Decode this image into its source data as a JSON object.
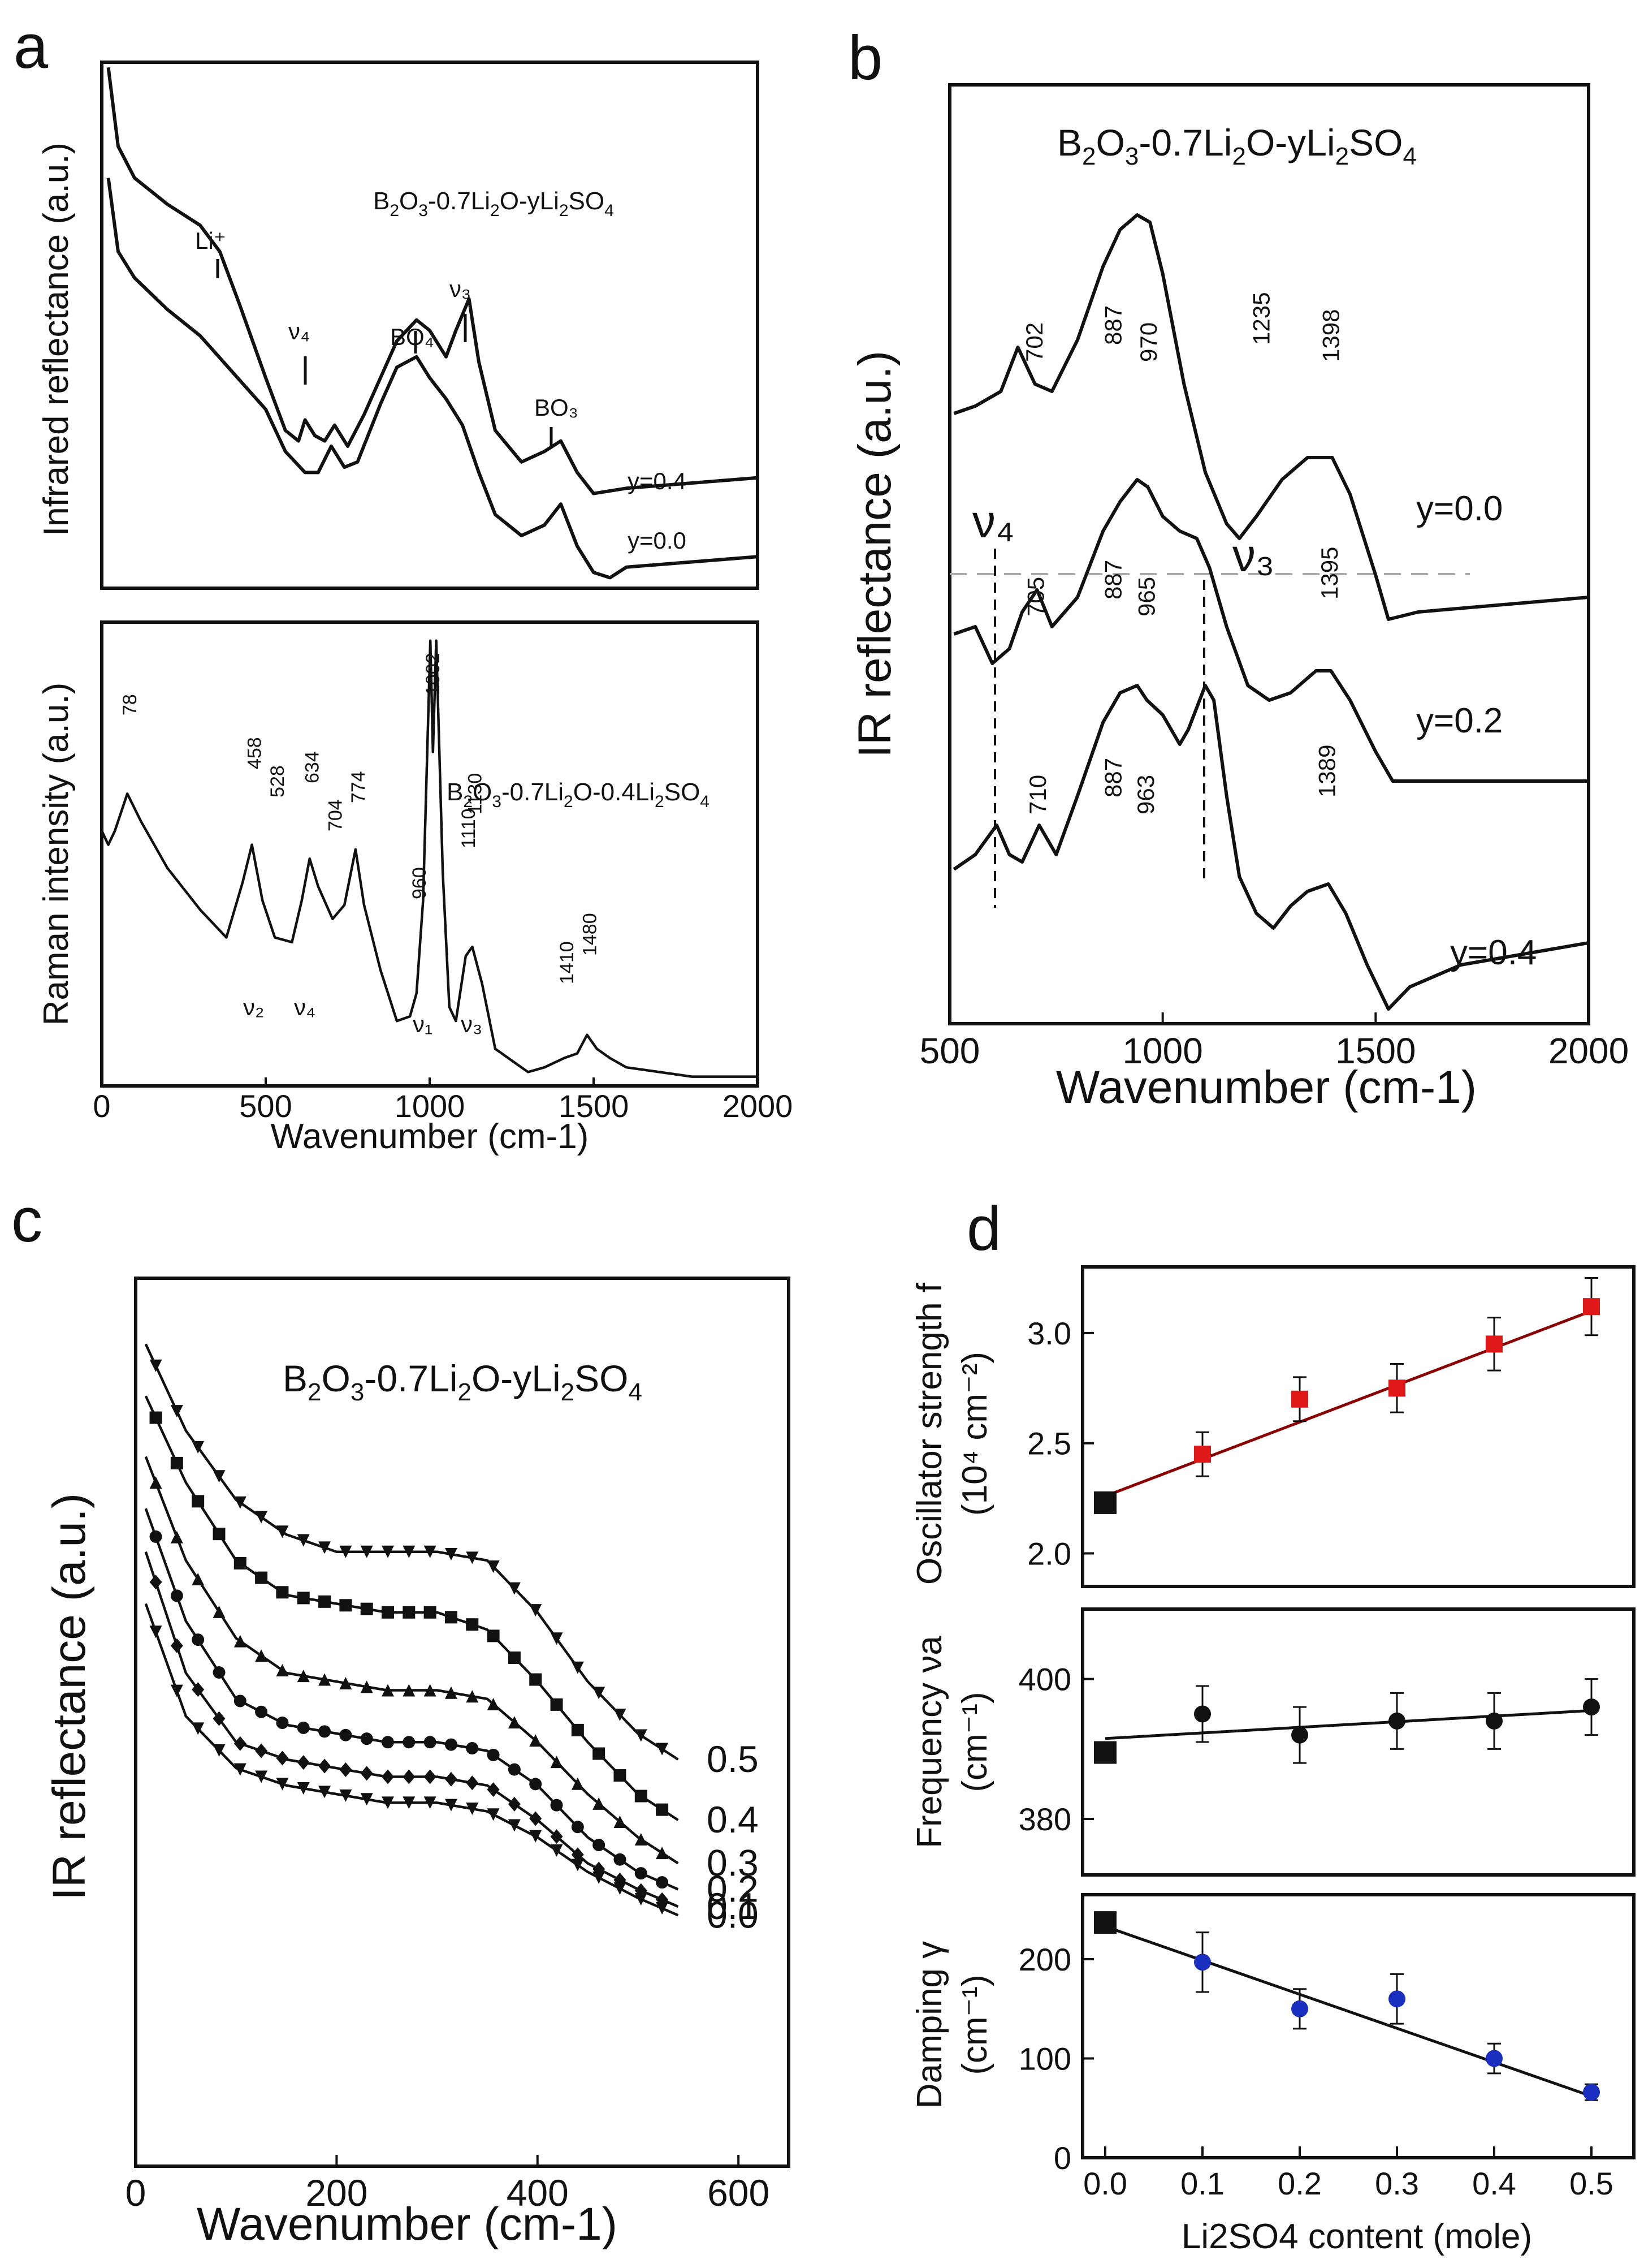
{
  "panels": {
    "a": {
      "label": "a",
      "top": {
        "ylabel": "Infrared reflectance (a.u.)",
        "formula": {
          "base": "B",
          "s1": "2",
          "o": "O",
          "s2": "3",
          "mid": "-0.7Li",
          "s3": "2",
          "mid2": "O-yLi",
          "s4": "2",
          "so": "SO",
          "s5": "4"
        },
        "annotations": {
          "li": "Li⁺",
          "v4": "ν₄",
          "bo4": "BO₄",
          "v3": "ν₃",
          "bo3": "BO₃"
        },
        "series": [
          {
            "name": "y=0.4"
          },
          {
            "name": "y=0.0"
          }
        ]
      },
      "bottom": {
        "ylabel": "Raman intensity (a.u.)",
        "formula": {
          "base": "B",
          "s1": "2",
          "o": "O",
          "s2": "3",
          "mid": "-0.7Li",
          "s3": "2",
          "mid2": "O-0.4Li",
          "s4": "2",
          "so": "SO",
          "s5": "4"
        },
        "peaks": [
          "78",
          "458",
          "528",
          "634",
          "704",
          "774",
          "1002",
          "960",
          "1110",
          "1130",
          "1410",
          "1480"
        ],
        "modes": [
          "ν₂",
          "ν₄",
          "ν₁",
          "ν₃"
        ],
        "xlabel": "Wavenumber (cm-1)",
        "xticks": [
          "0",
          "500",
          "1000",
          "1500",
          "2000"
        ]
      }
    },
    "b": {
      "label": "b",
      "ylabel": "IR reflectance (a.u.)",
      "xlabel": "Wavenumber (cm-1)",
      "xticks": [
        "500",
        "1000",
        "1500",
        "2000"
      ],
      "formula": {
        "base": "B",
        "s1": "2",
        "o": "O",
        "s2": "3",
        "mid": "-0.7Li",
        "s3": "2",
        "mid2": "O-yLi",
        "s4": "2",
        "so": "SO",
        "s5": "4"
      },
      "modes": {
        "v4": "ν₄",
        "v3": "ν₃"
      },
      "series": [
        {
          "name": "y=0.0",
          "peaks": [
            "702",
            "887",
            "970",
            "1235",
            "1398"
          ]
        },
        {
          "name": "y=0.2",
          "peaks": [
            "705",
            "887",
            "965",
            "1395"
          ]
        },
        {
          "name": "y=0.4",
          "peaks": [
            "710",
            "887",
            "963",
            "1389"
          ]
        }
      ]
    },
    "c": {
      "label": "c",
      "ylabel": "IR reflectance (a.u.)",
      "xlabel": "Wavenumber (cm-1)",
      "xticks": [
        "0",
        "200",
        "400",
        "600"
      ],
      "formula": {
        "base": "B",
        "s1": "2",
        "o": "O",
        "s2": "3",
        "mid": "-0.7Li",
        "s3": "2",
        "mid2": "O-yLi",
        "s4": "2",
        "so": "SO",
        "s5": "4"
      },
      "series": [
        "0.5",
        "0.4",
        "0.3",
        "0.2",
        "0.1",
        "0.0"
      ]
    },
    "d": {
      "label": "d",
      "xlabel": "Li2SO4 content (mole)",
      "xticks": [
        "0.0",
        "0.1",
        "0.2",
        "0.3",
        "0.4",
        "0.5"
      ],
      "subplots": [
        {
          "ylabel1": "Oscillator strength f",
          "ylabel2": "(10⁴ cm⁻²)",
          "yticks": [
            "2.0",
            "2.5",
            "3.0"
          ]
        },
        {
          "ylabel1": "Frequency νa",
          "ylabel2": "(cm⁻¹)",
          "yticks": [
            "380",
            "400"
          ]
        },
        {
          "ylabel1": "Damping γ",
          "ylabel2": "(cm⁻¹)",
          "yticks": [
            "0",
            "100",
            "200"
          ]
        }
      ]
    }
  },
  "chart_data": [
    {
      "id": "a-top",
      "type": "line",
      "title": "",
      "xlabel": "Wavenumber (cm-1)",
      "ylabel": "Infrared reflectance (a.u.)",
      "xlim": [
        0,
        2000
      ],
      "series": [
        {
          "name": "y=0.4",
          "x": [
            20,
            50,
            100,
            200,
            300,
            360,
            420,
            500,
            560,
            600,
            620,
            650,
            680,
            710,
            750,
            800,
            900,
            960,
            1000,
            1050,
            1080,
            1120,
            1150,
            1200,
            1280,
            1350,
            1400,
            1450,
            1500,
            1600,
            1800,
            2000
          ],
          "y": [
            99,
            84,
            78,
            73,
            69,
            64,
            54,
            40,
            30,
            28,
            32,
            29,
            28,
            31,
            27,
            33,
            47,
            51,
            49,
            44,
            49,
            55,
            43,
            30,
            24,
            26,
            28,
            22,
            18,
            19,
            20,
            21
          ]
        },
        {
          "name": "y=0.0",
          "x": [
            20,
            50,
            100,
            200,
            300,
            400,
            500,
            560,
            620,
            660,
            700,
            740,
            780,
            850,
            900,
            960,
            1000,
            1050,
            1100,
            1150,
            1200,
            1280,
            1350,
            1400,
            1450,
            1500,
            1550,
            1600,
            1800,
            2000
          ],
          "y": [
            78,
            64,
            59,
            53,
            48,
            41,
            34,
            26,
            22,
            22,
            27,
            23,
            24,
            35,
            42,
            44,
            40,
            36,
            31,
            22,
            14,
            10,
            12,
            16,
            8,
            3,
            2,
            4,
            5,
            6
          ]
        }
      ]
    },
    {
      "id": "a-bottom",
      "type": "line",
      "title": "",
      "xlabel": "Wavenumber (cm-1)",
      "ylabel": "Raman intensity (a.u.)",
      "xlim": [
        0,
        2000
      ],
      "series": [
        {
          "name": "y=0.4",
          "x": [
            0,
            20,
            40,
            78,
            120,
            200,
            300,
            380,
            430,
            458,
            490,
            528,
            580,
            610,
            634,
            660,
            704,
            740,
            774,
            800,
            850,
            900,
            940,
            960,
            980,
            1002,
            1010,
            1020,
            1040,
            1060,
            1080,
            1110,
            1130,
            1160,
            1200,
            1300,
            1350,
            1410,
            1450,
            1480,
            1510,
            1550,
            1600,
            1700,
            1800,
            1900,
            2000
          ],
          "y": [
            55,
            52,
            55,
            63,
            57,
            47,
            38,
            32,
            44,
            52,
            40,
            32,
            31,
            40,
            49,
            43,
            36,
            39,
            51,
            39,
            25,
            14,
            15,
            20,
            40,
            96,
            72,
            96,
            46,
            17,
            14,
            28,
            30,
            22,
            8,
            3,
            4,
            6,
            7,
            11,
            8,
            6,
            4,
            3,
            2,
            2,
            2
          ]
        }
      ]
    },
    {
      "id": "b",
      "type": "line",
      "title": "B2O3-0.7Li2O-yLi2SO4",
      "xlabel": "Wavenumber (cm-1)",
      "ylabel": "IR reflectance (a.u.)",
      "xlim": [
        500,
        2000
      ],
      "series": [
        {
          "name": "y=0.0",
          "x": [
            510,
            560,
            620,
            660,
            700,
            740,
            800,
            860,
            900,
            940,
            970,
            1000,
            1050,
            1100,
            1150,
            1180,
            1220,
            1280,
            1340,
            1398,
            1440,
            1500,
            1530,
            1600,
            1800,
            2000
          ],
          "y": [
            83,
            84,
            86,
            92,
            87,
            86,
            93,
            103,
            108,
            110,
            109,
            102,
            87,
            75,
            68,
            66,
            69,
            74,
            77,
            77,
            72,
            61,
            55,
            56,
            57,
            58
          ]
        },
        {
          "name": "y=0.2",
          "x": [
            510,
            560,
            600,
            640,
            670,
            705,
            740,
            800,
            860,
            900,
            940,
            965,
            1000,
            1040,
            1080,
            1110,
            1150,
            1200,
            1250,
            1300,
            1360,
            1395,
            1440,
            1500,
            1540,
            1600,
            1800,
            2000
          ],
          "y": [
            53,
            54,
            49,
            51,
            56,
            59,
            54,
            58,
            67,
            71,
            74,
            73,
            69,
            67,
            66,
            62,
            54,
            46,
            44,
            45,
            48,
            48,
            44,
            37,
            33,
            33,
            33,
            33
          ]
        },
        {
          "name": "y=0.4",
          "x": [
            510,
            560,
            610,
            640,
            670,
            710,
            750,
            800,
            860,
            900,
            940,
            963,
            1000,
            1040,
            1060,
            1100,
            1120,
            1150,
            1180,
            1220,
            1260,
            1300,
            1340,
            1389,
            1430,
            1480,
            1530,
            1580,
            1700,
            1800,
            2000
          ],
          "y": [
            21,
            23,
            27,
            23,
            22,
            27,
            23,
            31,
            41,
            45,
            46,
            44,
            42,
            38,
            40,
            46,
            44,
            31,
            20,
            15,
            13,
            16,
            18,
            19,
            15,
            8,
            2,
            5,
            8,
            9,
            11
          ]
        }
      ]
    },
    {
      "id": "c",
      "type": "line",
      "title": "B2O3-0.7Li2O-yLi2SO4",
      "xlabel": "Wavenumber (cm-1)",
      "ylabel": "IR reflectance (a.u.)",
      "xlim": [
        0,
        650
      ],
      "curve_x": [
        10,
        50,
        100,
        150,
        200,
        250,
        300,
        350,
        400,
        450,
        500,
        540
      ],
      "series": [
        {
          "name": "0.5",
          "marker": "triangle-down",
          "y": [
            95,
            85,
            77,
            73,
            71,
            71,
            71,
            70,
            64,
            56,
            50,
            47
          ]
        },
        {
          "name": "0.4",
          "marker": "square",
          "y": [
            89,
            79,
            70,
            66,
            65,
            64,
            64,
            62,
            56,
            49,
            43,
            40
          ]
        },
        {
          "name": "0.3",
          "marker": "triangle-up",
          "y": [
            82,
            70,
            61,
            57,
            56,
            55,
            55,
            54,
            49,
            43,
            38,
            35
          ]
        },
        {
          "name": "0.2",
          "marker": "circle",
          "y": [
            76,
            63,
            54,
            51,
            50,
            49,
            49,
            48,
            44,
            38,
            34,
            32
          ]
        },
        {
          "name": "0.1",
          "marker": "diamond",
          "y": [
            71,
            57,
            49,
            47,
            46,
            45,
            45,
            44,
            40,
            35,
            32,
            30
          ]
        },
        {
          "name": "0.0",
          "marker": "triangle-down",
          "y": [
            65,
            52,
            46,
            44,
            43,
            42,
            42,
            41,
            38,
            34,
            31,
            29
          ]
        }
      ]
    },
    {
      "id": "d-oscillator",
      "type": "scatter",
      "title": "",
      "xlabel": "Li2SO4 content (mole)",
      "ylabel": "Oscillator strength f (10⁴ cm⁻²)",
      "ylim": [
        1.85,
        3.3
      ],
      "x": [
        0.0,
        0.1,
        0.2,
        0.3,
        0.4,
        0.5
      ],
      "y": [
        2.23,
        2.45,
        2.7,
        2.75,
        2.95,
        3.12
      ],
      "yerr": [
        0,
        0.1,
        0.1,
        0.11,
        0.12,
        0.13
      ],
      "fit": [
        2.26,
        3.1
      ]
    },
    {
      "id": "d-frequency",
      "type": "scatter",
      "title": "",
      "xlabel": "Li2SO4 content (mole)",
      "ylabel": "Frequency νa (cm⁻¹)",
      "ylim": [
        372,
        410
      ],
      "x": [
        0.0,
        0.1,
        0.2,
        0.3,
        0.4,
        0.5
      ],
      "y": [
        389.5,
        395,
        392,
        394,
        394,
        396
      ],
      "yerr": [
        0,
        4,
        4,
        4,
        4,
        4
      ],
      "fit": [
        391.5,
        395.5
      ]
    },
    {
      "id": "d-damping",
      "type": "scatter",
      "title": "",
      "xlabel": "Li2SO4 content (mole)",
      "ylabel": "Damping γ (cm⁻¹)",
      "ylim": [
        0,
        265
      ],
      "x": [
        0.0,
        0.1,
        0.2,
        0.3,
        0.4,
        0.5
      ],
      "y": [
        237,
        197,
        150,
        160,
        100,
        66
      ],
      "yerr": [
        0,
        30,
        20,
        25,
        15,
        8
      ],
      "fit": [
        233,
        62
      ]
    }
  ]
}
